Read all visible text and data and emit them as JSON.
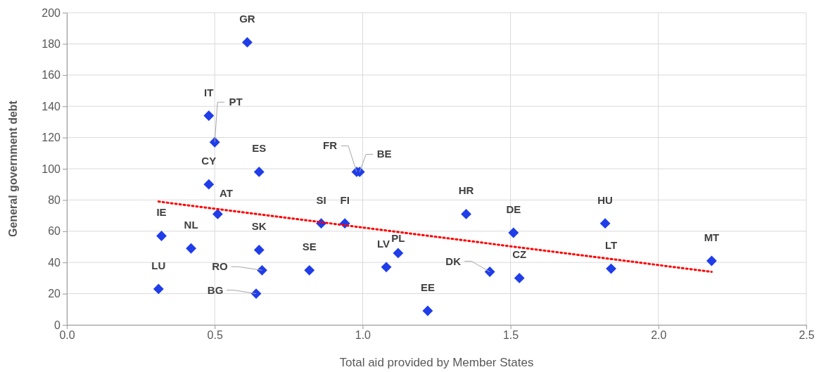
{
  "chart_data": {
    "type": "scatter",
    "xlabel": "Total aid provided by Member States",
    "ylabel": "General government debt",
    "xlim": [
      0,
      2.5
    ],
    "xticks": [
      {
        "value": 0,
        "label": "0.0"
      },
      {
        "value": 0.5,
        "label": "0.5"
      },
      {
        "value": 1,
        "label": "1.0"
      },
      {
        "value": 1.5,
        "label": "1.5"
      },
      {
        "value": 2,
        "label": "2.0"
      },
      {
        "value": 2.5,
        "label": "2.5"
      }
    ],
    "ylim": [
      0,
      200
    ],
    "yticks": [
      0,
      20,
      40,
      60,
      80,
      100,
      120,
      140,
      160,
      180,
      200
    ],
    "grid": true,
    "marker": "diamond",
    "series": [
      {
        "color": "#1f3de8",
        "x": [
          0.61,
          0.48,
          0.5,
          0.65,
          0.48,
          0.51,
          0.98,
          0.99,
          0.32,
          0.42,
          0.65,
          0.86,
          0.94,
          0.82,
          0.66,
          0.64,
          0.31,
          1.08,
          1.12,
          1.22,
          1.35,
          1.51,
          1.43,
          1.53,
          1.82,
          1.84,
          2.18
        ],
        "values": [
          181,
          134,
          117,
          98,
          90,
          71,
          98,
          98,
          57,
          49,
          48,
          65,
          65,
          35,
          35,
          20,
          23,
          37,
          46,
          9,
          71,
          59,
          34,
          30,
          65,
          36,
          41
        ]
      },
      {
        "type": "line",
        "color": "#ff0000",
        "line_style": "dotted",
        "marker": "none",
        "x": [
          0.31,
          2.18
        ],
        "values": [
          79,
          34
        ]
      }
    ],
    "annotations": [
      {
        "text": "GR",
        "x": 0.61,
        "y": 181
      },
      {
        "text": "IT",
        "x": 0.48,
        "y": 134
      },
      {
        "text": "PT",
        "x": 0.5,
        "y": 117
      },
      {
        "text": "ES",
        "x": 0.65,
        "y": 98
      },
      {
        "text": "CY",
        "x": 0.48,
        "y": 90
      },
      {
        "text": "AT",
        "x": 0.51,
        "y": 71
      },
      {
        "text": "FR",
        "x": 0.98,
        "y": 98
      },
      {
        "text": "BE",
        "x": 0.99,
        "y": 98
      },
      {
        "text": "IE",
        "x": 0.32,
        "y": 57
      },
      {
        "text": "NL",
        "x": 0.42,
        "y": 49
      },
      {
        "text": "SK",
        "x": 0.65,
        "y": 48
      },
      {
        "text": "SI",
        "x": 0.86,
        "y": 65
      },
      {
        "text": "FI",
        "x": 0.94,
        "y": 65
      },
      {
        "text": "SE",
        "x": 0.82,
        "y": 35
      },
      {
        "text": "RO",
        "x": 0.66,
        "y": 35
      },
      {
        "text": "BG",
        "x": 0.64,
        "y": 20
      },
      {
        "text": "LU",
        "x": 0.31,
        "y": 23
      },
      {
        "text": "LV",
        "x": 1.08,
        "y": 37
      },
      {
        "text": "PL",
        "x": 1.12,
        "y": 46
      },
      {
        "text": "EE",
        "x": 1.22,
        "y": 9
      },
      {
        "text": "HR",
        "x": 1.35,
        "y": 71
      },
      {
        "text": "DE",
        "x": 1.51,
        "y": 59
      },
      {
        "text": "DK",
        "x": 1.43,
        "y": 34
      },
      {
        "text": "CZ",
        "x": 1.53,
        "y": 30
      },
      {
        "text": "HU",
        "x": 1.82,
        "y": 65
      },
      {
        "text": "LT",
        "x": 1.84,
        "y": 36
      },
      {
        "text": "MT",
        "x": 2.18,
        "y": 41
      }
    ]
  }
}
